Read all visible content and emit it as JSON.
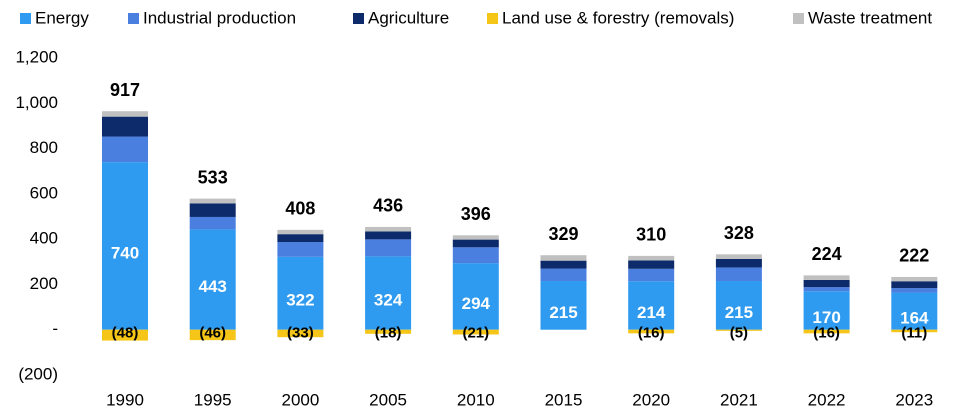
{
  "chart_data": {
    "type": "stacked-bar",
    "categories": [
      "1990",
      "1995",
      "2000",
      "2005",
      "2010",
      "2015",
      "2020",
      "2021",
      "2022",
      "2023"
    ],
    "series": [
      {
        "name": "Energy",
        "color": "#2e9bf0",
        "values": [
          740,
          443,
          322,
          324,
          294,
          215,
          214,
          215,
          170,
          164
        ]
      },
      {
        "name": "Industrial production",
        "color": "#4a7fe0",
        "values": [
          113,
          55,
          65,
          75,
          70,
          55,
          55,
          60,
          18,
          20
        ]
      },
      {
        "name": "Agriculture",
        "color": "#0d2a6b",
        "values": [
          88,
          60,
          35,
          35,
          34,
          35,
          37,
          38,
          32,
          30
        ]
      },
      {
        "name": "Land use & forestry (removals)",
        "color": "#f5c518",
        "values": [
          -48,
          -46,
          -33,
          -18,
          -21,
          null,
          -16,
          -5,
          -16,
          -11
        ],
        "value_labels": [
          "(48)",
          "(46)",
          "(33)",
          "(18)",
          "(21)",
          null,
          "(16)",
          "(5)",
          "(16)",
          "(11)"
        ]
      },
      {
        "name": "Waste treatment",
        "color": "#c0c0c0",
        "values": [
          24,
          21,
          19,
          20,
          19,
          24,
          20,
          20,
          20,
          19
        ]
      }
    ],
    "totals": [
      917,
      533,
      408,
      436,
      396,
      329,
      310,
      328,
      224,
      222
    ],
    "ylim": [
      -200,
      1200
    ],
    "yticks": [
      {
        "value": -200,
        "label": "(200)"
      },
      {
        "value": 0,
        "label": "-"
      },
      200,
      400,
      600,
      800,
      {
        "value": 1000,
        "label": "1,000"
      },
      {
        "value": 1200,
        "label": "1,200"
      }
    ],
    "legend": "top"
  }
}
